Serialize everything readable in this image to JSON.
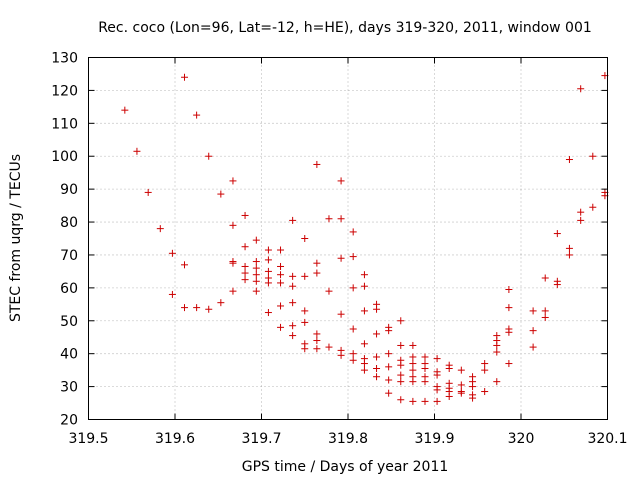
{
  "chart_data": {
    "type": "scatter",
    "title": "Rec. coco (Lon=96, Lat=-12, h=HE), days 319-320, 2011, window 001",
    "xlabel": "GPS time / Days of year 2011",
    "ylabel": "STEC from uqrg / TECUs",
    "xlim": [
      319.5,
      320.1
    ],
    "ylim": [
      20,
      130
    ],
    "xticks": [
      319.5,
      319.6,
      319.7,
      319.8,
      319.9,
      320,
      320.1
    ],
    "xtick_labels": [
      "319.5",
      "319.6",
      "319.7",
      "319.8",
      "319.9",
      "320",
      "320.1"
    ],
    "yticks": [
      20,
      30,
      40,
      50,
      60,
      70,
      80,
      90,
      100,
      110,
      120,
      130
    ],
    "ytick_labels": [
      "20",
      "30",
      "40",
      "50",
      "60",
      "70",
      "80",
      "90",
      "100",
      "110",
      "120",
      "130"
    ],
    "grid": true,
    "marker": "+",
    "color": "#cc0000",
    "series": [
      {
        "name": "STEC",
        "points": [
          [
            319.542,
            114
          ],
          [
            319.556,
            101.5
          ],
          [
            319.569,
            89
          ],
          [
            319.583,
            78
          ],
          [
            319.597,
            70.5
          ],
          [
            319.597,
            58
          ],
          [
            319.611,
            124
          ],
          [
            319.611,
            67
          ],
          [
            319.611,
            54
          ],
          [
            319.625,
            112.5
          ],
          [
            319.625,
            54
          ],
          [
            319.639,
            100
          ],
          [
            319.639,
            53.5
          ],
          [
            319.653,
            88.5
          ],
          [
            319.653,
            55.5
          ],
          [
            319.667,
            92.5
          ],
          [
            319.667,
            79
          ],
          [
            319.667,
            68
          ],
          [
            319.667,
            67.5
          ],
          [
            319.667,
            59
          ],
          [
            319.681,
            82
          ],
          [
            319.681,
            72.5
          ],
          [
            319.681,
            66.5
          ],
          [
            319.681,
            64.5
          ],
          [
            319.681,
            62.5
          ],
          [
            319.694,
            74.5
          ],
          [
            319.694,
            68
          ],
          [
            319.694,
            66
          ],
          [
            319.694,
            64
          ],
          [
            319.694,
            62
          ],
          [
            319.694,
            59
          ],
          [
            319.708,
            71.5
          ],
          [
            319.708,
            68.5
          ],
          [
            319.708,
            65
          ],
          [
            319.708,
            63
          ],
          [
            319.708,
            61.5
          ],
          [
            319.708,
            52.5
          ],
          [
            319.722,
            71.5
          ],
          [
            319.722,
            66.5
          ],
          [
            319.722,
            64
          ],
          [
            319.722,
            61.5
          ],
          [
            319.722,
            54.5
          ],
          [
            319.722,
            48
          ],
          [
            319.736,
            80.5
          ],
          [
            319.736,
            63.5
          ],
          [
            319.736,
            60.5
          ],
          [
            319.736,
            55.5
          ],
          [
            319.736,
            48.5
          ],
          [
            319.736,
            45.5
          ],
          [
            319.75,
            75
          ],
          [
            319.75,
            63.5
          ],
          [
            319.75,
            53
          ],
          [
            319.75,
            49.5
          ],
          [
            319.75,
            43
          ],
          [
            319.75,
            41.5
          ],
          [
            319.764,
            97.5
          ],
          [
            319.764,
            67.5
          ],
          [
            319.764,
            64.5
          ],
          [
            319.764,
            46
          ],
          [
            319.764,
            44
          ],
          [
            319.764,
            41.5
          ],
          [
            319.778,
            81
          ],
          [
            319.778,
            59
          ],
          [
            319.778,
            42
          ],
          [
            319.792,
            92.5
          ],
          [
            319.792,
            81
          ],
          [
            319.792,
            69
          ],
          [
            319.792,
            52
          ],
          [
            319.792,
            41
          ],
          [
            319.792,
            39.5
          ],
          [
            319.806,
            77
          ],
          [
            319.806,
            69.5
          ],
          [
            319.806,
            60
          ],
          [
            319.806,
            47.5
          ],
          [
            319.806,
            40
          ],
          [
            319.806,
            38
          ],
          [
            319.819,
            64
          ],
          [
            319.819,
            60.5
          ],
          [
            319.819,
            53
          ],
          [
            319.819,
            43
          ],
          [
            319.819,
            38.5
          ],
          [
            319.819,
            37
          ],
          [
            319.819,
            35
          ],
          [
            319.833,
            55
          ],
          [
            319.833,
            53.5
          ],
          [
            319.833,
            46
          ],
          [
            319.833,
            39
          ],
          [
            319.833,
            35.5
          ],
          [
            319.833,
            33
          ],
          [
            319.847,
            48
          ],
          [
            319.847,
            47
          ],
          [
            319.847,
            40
          ],
          [
            319.847,
            36
          ],
          [
            319.847,
            32
          ],
          [
            319.847,
            28
          ],
          [
            319.861,
            50
          ],
          [
            319.861,
            42.5
          ],
          [
            319.861,
            38
          ],
          [
            319.861,
            36.5
          ],
          [
            319.861,
            33.5
          ],
          [
            319.861,
            31.5
          ],
          [
            319.861,
            26
          ],
          [
            319.875,
            42.5
          ],
          [
            319.875,
            39
          ],
          [
            319.875,
            37
          ],
          [
            319.875,
            35
          ],
          [
            319.875,
            33
          ],
          [
            319.875,
            31.5
          ],
          [
            319.875,
            25.5
          ],
          [
            319.889,
            39
          ],
          [
            319.889,
            37
          ],
          [
            319.889,
            35.5
          ],
          [
            319.889,
            33
          ],
          [
            319.889,
            31.5
          ],
          [
            319.889,
            25.5
          ],
          [
            319.903,
            38.5
          ],
          [
            319.903,
            34.5
          ],
          [
            319.903,
            33.5
          ],
          [
            319.903,
            30
          ],
          [
            319.903,
            29
          ],
          [
            319.903,
            25.5
          ],
          [
            319.917,
            36.5
          ],
          [
            319.917,
            35.5
          ],
          [
            319.917,
            31
          ],
          [
            319.917,
            29.5
          ],
          [
            319.917,
            28.5
          ],
          [
            319.917,
            27
          ],
          [
            319.931,
            35
          ],
          [
            319.931,
            30.5
          ],
          [
            319.931,
            28.5
          ],
          [
            319.931,
            28
          ],
          [
            319.944,
            33
          ],
          [
            319.944,
            31.5
          ],
          [
            319.944,
            30
          ],
          [
            319.944,
            27.5
          ],
          [
            319.944,
            26.5
          ],
          [
            319.958,
            37
          ],
          [
            319.958,
            35
          ],
          [
            319.958,
            28.5
          ],
          [
            319.972,
            45.5
          ],
          [
            319.972,
            44
          ],
          [
            319.972,
            42.5
          ],
          [
            319.972,
            40.5
          ],
          [
            319.972,
            31.5
          ],
          [
            319.986,
            59.5
          ],
          [
            319.986,
            54
          ],
          [
            319.986,
            47.5
          ],
          [
            319.986,
            46.5
          ],
          [
            319.986,
            37
          ],
          [
            320.014,
            53
          ],
          [
            320.014,
            47
          ],
          [
            320.014,
            42
          ],
          [
            320.028,
            63
          ],
          [
            320.028,
            53
          ],
          [
            320.028,
            51
          ],
          [
            320.042,
            76.5
          ],
          [
            320.042,
            62
          ],
          [
            320.042,
            61
          ],
          [
            320.056,
            99
          ],
          [
            320.056,
            72
          ],
          [
            320.056,
            70
          ],
          [
            320.069,
            120.5
          ],
          [
            320.069,
            83
          ],
          [
            320.069,
            80.5
          ],
          [
            320.083,
            100
          ],
          [
            320.083,
            84.5
          ],
          [
            320.097,
            124.5
          ],
          [
            320.097,
            89
          ],
          [
            320.097,
            88
          ]
        ]
      }
    ]
  }
}
